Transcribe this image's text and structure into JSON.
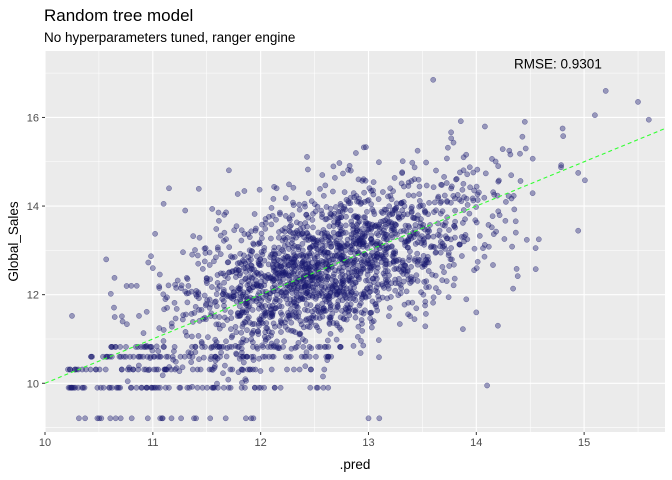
{
  "chart_data": {
    "type": "scatter",
    "title": "Random tree model",
    "subtitle": "No hyperparameters tuned, ranger engine",
    "xlabel": ".pred",
    "ylabel": "Global_Sales",
    "xlim": [
      10.0,
      15.75
    ],
    "ylim": [
      8.9,
      17.5
    ],
    "x_ticks": [
      10,
      11,
      12,
      13,
      14,
      15
    ],
    "y_ticks": [
      10,
      12,
      14,
      16
    ],
    "grid": true,
    "annotation": "RMSE:  0.9301",
    "reference_line": {
      "slope": 1,
      "intercept": 0,
      "style": "dashed",
      "color": "#32ff32"
    },
    "point_color": "#191970",
    "point_alpha": 0.4,
    "n_points_approx": 2300,
    "point_distribution": {
      "description": "dense cloud centered around pred 12-13.5, sales 11.5-14.5; discrete low rows at 9.2, 9.9, 10.3, 10.6, 10.8",
      "core": {
        "x_mean": 12.6,
        "x_sd": 0.75,
        "y_slope": 0.85,
        "y_intercept": 1.9,
        "y_noise_sd": 0.85,
        "count": 1950
      },
      "low_rows": [
        {
          "y": 9.21,
          "x_range": [
            10.3,
            12.2
          ],
          "count": 22
        },
        {
          "y": 9.9,
          "x_range": [
            10.2,
            12.7
          ],
          "count": 60
        },
        {
          "y": 10.31,
          "x_range": [
            10.2,
            12.6
          ],
          "count": 55
        },
        {
          "y": 10.6,
          "x_range": [
            10.4,
            12.7
          ],
          "count": 60
        },
        {
          "y": 10.82,
          "x_range": [
            10.6,
            12.8
          ],
          "count": 55
        }
      ],
      "outliers": [
        {
          "x": 13.6,
          "y": 16.85
        },
        {
          "x": 15.2,
          "y": 16.6
        },
        {
          "x": 15.5,
          "y": 16.35
        },
        {
          "x": 15.1,
          "y": 16.05
        },
        {
          "x": 15.6,
          "y": 15.95
        },
        {
          "x": 11.15,
          "y": 14.4
        },
        {
          "x": 11.1,
          "y": 14.05
        },
        {
          "x": 11.3,
          "y": 13.9
        },
        {
          "x": 10.85,
          "y": 12.2
        },
        {
          "x": 10.8,
          "y": 12.2
        },
        {
          "x": 11.0,
          "y": 12.6
        },
        {
          "x": 14.1,
          "y": 9.95
        },
        {
          "x": 13.1,
          "y": 9.21
        },
        {
          "x": 13.0,
          "y": 9.21
        },
        {
          "x": 14.2,
          "y": 11.3
        },
        {
          "x": 14.0,
          "y": 11.6
        },
        {
          "x": 14.55,
          "y": 13.05
        },
        {
          "x": 14.8,
          "y": 15.75
        }
      ]
    }
  }
}
